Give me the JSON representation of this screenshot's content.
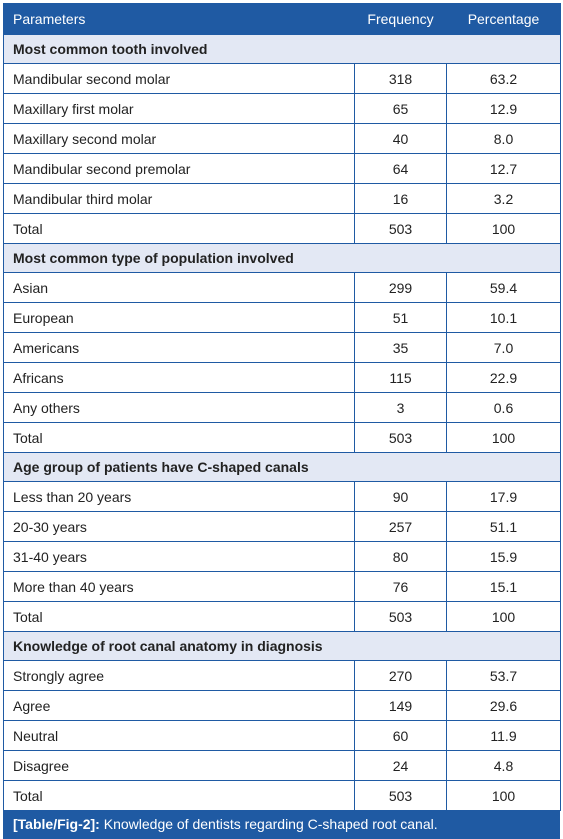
{
  "header": {
    "col1": "Parameters",
    "col2": "Frequency",
    "col3": "Percentage"
  },
  "sections": [
    {
      "title": "Most common tooth involved",
      "rows": [
        {
          "label": "Mandibular second molar",
          "frequency": "318",
          "percentage": "63.2"
        },
        {
          "label": "Maxillary first molar",
          "frequency": "65",
          "percentage": "12.9"
        },
        {
          "label": "Maxillary second molar",
          "frequency": "40",
          "percentage": "8.0"
        },
        {
          "label": "Mandibular second premolar",
          "frequency": "64",
          "percentage": "12.7"
        },
        {
          "label": "Mandibular third molar",
          "frequency": "16",
          "percentage": "3.2"
        },
        {
          "label": "Total",
          "frequency": "503",
          "percentage": "100"
        }
      ]
    },
    {
      "title": "Most common type of population involved",
      "rows": [
        {
          "label": "Asian",
          "frequency": "299",
          "percentage": "59.4"
        },
        {
          "label": "European",
          "frequency": "51",
          "percentage": "10.1"
        },
        {
          "label": "Americans",
          "frequency": "35",
          "percentage": "7.0"
        },
        {
          "label": "Africans",
          "frequency": "115",
          "percentage": "22.9"
        },
        {
          "label": "Any others",
          "frequency": "3",
          "percentage": "0.6"
        },
        {
          "label": "Total",
          "frequency": "503",
          "percentage": "100"
        }
      ]
    },
    {
      "title": "Age group of patients have C-shaped canals",
      "rows": [
        {
          "label": "Less than 20 years",
          "frequency": "90",
          "percentage": "17.9"
        },
        {
          "label": "20-30 years",
          "frequency": "257",
          "percentage": "51.1"
        },
        {
          "label": "31-40 years",
          "frequency": "80",
          "percentage": "15.9"
        },
        {
          "label": "More than 40 years",
          "frequency": "76",
          "percentage": "15.1"
        },
        {
          "label": "Total",
          "frequency": "503",
          "percentage": "100"
        }
      ]
    },
    {
      "title": "Knowledge of root canal anatomy in diagnosis",
      "rows": [
        {
          "label": "Strongly agree",
          "frequency": "270",
          "percentage": "53.7"
        },
        {
          "label": "Agree",
          "frequency": "149",
          "percentage": "29.6"
        },
        {
          "label": "Neutral",
          "frequency": "60",
          "percentage": "11.9"
        },
        {
          "label": "Disagree",
          "frequency": "24",
          "percentage": "4.8"
        },
        {
          "label": "Total",
          "frequency": "503",
          "percentage": "100"
        }
      ]
    }
  ],
  "caption": {
    "tag": "[Table/Fig-2]:",
    "text": "Knowledge of dentists regarding C-shaped root canal."
  }
}
